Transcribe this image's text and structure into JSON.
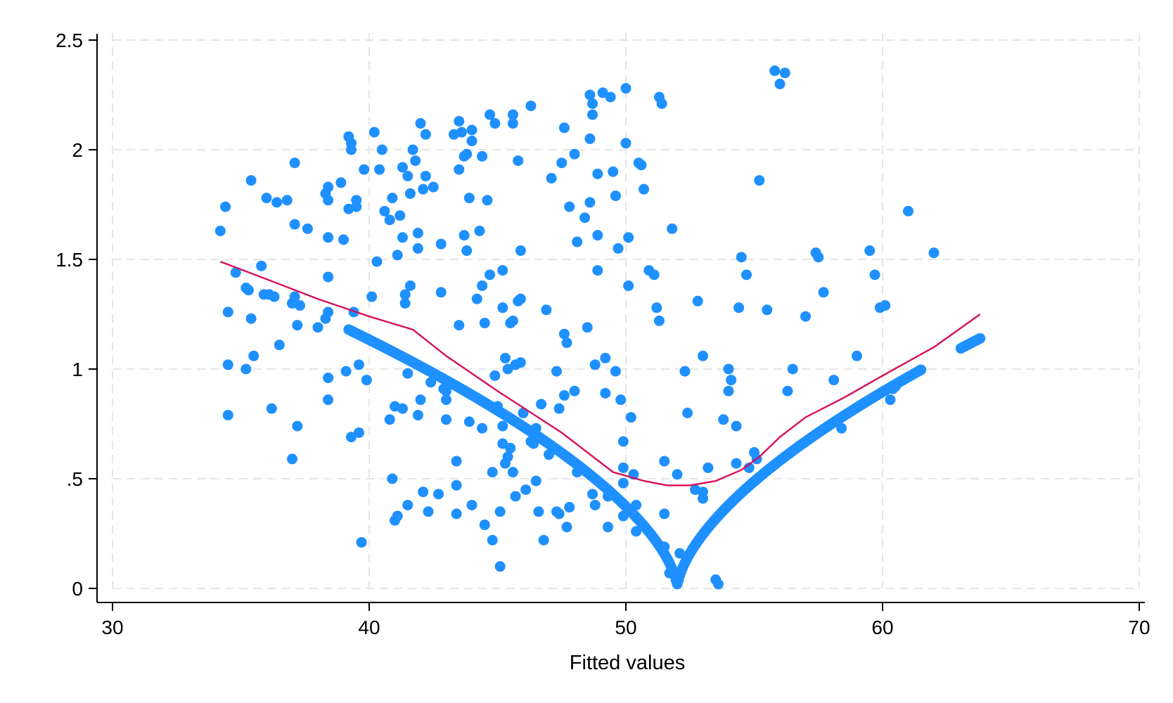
{
  "chart_data": {
    "type": "scatter",
    "title": "",
    "xlabel": "Fitted values",
    "ylabel": "",
    "xlim": [
      30,
      70
    ],
    "ylim": [
      0,
      2.5
    ],
    "x_ticks": [
      30,
      40,
      50,
      60,
      70
    ],
    "x_tick_labels": [
      "30",
      "40",
      "50",
      "60",
      "70"
    ],
    "y_ticks": [
      0,
      0.5,
      1,
      1.5,
      2,
      2.5
    ],
    "y_tick_labels": [
      "0",
      ".5",
      "1",
      "1.5",
      "2",
      "2.5"
    ],
    "grid": true,
    "legend": "none",
    "colors": {
      "points": "#1e90ff",
      "smooth_line": "#d5105a",
      "grid": "#e6e6e6",
      "axis": "#000000"
    },
    "series": [
      {
        "type": "scatter",
        "points": [
          [
            34.2,
            1.63
          ],
          [
            34.4,
            1.74
          ],
          [
            34.5,
            1.26
          ],
          [
            34.5,
            1.02
          ],
          [
            34.5,
            0.79
          ],
          [
            34.8,
            1.44
          ],
          [
            35.2,
            1.37
          ],
          [
            35.3,
            1.36
          ],
          [
            35.2,
            1.0
          ],
          [
            35.4,
            1.86
          ],
          [
            35.4,
            1.23
          ],
          [
            35.5,
            1.06
          ],
          [
            35.8,
            1.47
          ],
          [
            35.9,
            1.34
          ],
          [
            36.0,
            1.78
          ],
          [
            36.1,
            1.34
          ],
          [
            36.2,
            0.82
          ],
          [
            36.3,
            1.33
          ],
          [
            36.4,
            1.76
          ],
          [
            36.5,
            1.11
          ],
          [
            36.8,
            1.77
          ],
          [
            37.0,
            1.3
          ],
          [
            37.1,
            1.33
          ],
          [
            37.1,
            1.66
          ],
          [
            37.1,
            1.94
          ],
          [
            37.2,
            1.2
          ],
          [
            37.3,
            1.29
          ],
          [
            37.0,
            0.59
          ],
          [
            37.2,
            0.74
          ],
          [
            37.6,
            1.64
          ],
          [
            38.0,
            1.19
          ],
          [
            38.3,
            1.23
          ],
          [
            38.3,
            1.8
          ],
          [
            38.4,
            1.83
          ],
          [
            38.4,
            1.77
          ],
          [
            38.4,
            1.6
          ],
          [
            38.4,
            1.42
          ],
          [
            38.4,
            1.26
          ],
          [
            38.4,
            0.96
          ],
          [
            38.4,
            0.86
          ],
          [
            38.9,
            1.85
          ],
          [
            39.0,
            1.59
          ],
          [
            39.1,
            0.99
          ],
          [
            39.2,
            2.06
          ],
          [
            39.2,
            1.73
          ],
          [
            39.3,
            2.03
          ],
          [
            39.3,
            2.0
          ],
          [
            39.4,
            1.26
          ],
          [
            39.5,
            1.77
          ],
          [
            39.5,
            1.74
          ],
          [
            39.6,
            1.02
          ],
          [
            39.3,
            0.69
          ],
          [
            39.6,
            0.71
          ],
          [
            39.7,
            0.21
          ],
          [
            39.8,
            1.91
          ],
          [
            39.9,
            0.95
          ],
          [
            40.1,
            1.33
          ],
          [
            40.2,
            2.08
          ],
          [
            40.3,
            1.49
          ],
          [
            40.4,
            1.91
          ],
          [
            40.5,
            2.0
          ],
          [
            40.6,
            1.72
          ],
          [
            40.8,
            1.68
          ],
          [
            40.9,
            1.78
          ],
          [
            40.8,
            0.77
          ],
          [
            40.9,
            0.5
          ],
          [
            41.0,
            0.83
          ],
          [
            41.0,
            0.31
          ],
          [
            41.1,
            0.33
          ],
          [
            41.1,
            1.52
          ],
          [
            41.2,
            1.7
          ],
          [
            41.3,
            1.6
          ],
          [
            41.3,
            0.82
          ],
          [
            41.3,
            1.92
          ],
          [
            41.4,
            1.3
          ],
          [
            41.4,
            1.34
          ],
          [
            41.5,
            0.98
          ],
          [
            41.5,
            1.88
          ],
          [
            41.5,
            0.38
          ],
          [
            41.6,
            1.8
          ],
          [
            41.6,
            1.38
          ],
          [
            41.7,
            2.0
          ],
          [
            41.8,
            1.95
          ],
          [
            41.9,
            1.55
          ],
          [
            41.9,
            1.62
          ],
          [
            41.9,
            0.79
          ],
          [
            42.0,
            2.12
          ],
          [
            42.0,
            0.86
          ],
          [
            42.1,
            0.44
          ],
          [
            42.1,
            1.82
          ],
          [
            42.2,
            1.88
          ],
          [
            42.2,
            2.07
          ],
          [
            42.3,
            0.35
          ],
          [
            42.4,
            0.94
          ],
          [
            42.5,
            1.83
          ],
          [
            42.7,
            0.43
          ],
          [
            42.8,
            1.57
          ],
          [
            42.8,
            1.35
          ],
          [
            42.9,
            0.91
          ],
          [
            43.0,
            0.9
          ],
          [
            43.0,
            0.77
          ],
          [
            43.0,
            0.86
          ],
          [
            43.3,
            2.07
          ],
          [
            43.4,
            0.58
          ],
          [
            43.4,
            0.47
          ],
          [
            43.4,
            0.34
          ],
          [
            43.5,
            2.13
          ],
          [
            43.5,
            1.91
          ],
          [
            43.5,
            1.2
          ],
          [
            43.6,
            2.08
          ],
          [
            43.7,
            1.97
          ],
          [
            43.7,
            1.61
          ],
          [
            43.8,
            1.98
          ],
          [
            43.8,
            1.54
          ],
          [
            43.9,
            1.78
          ],
          [
            43.9,
            0.76
          ],
          [
            44.0,
            2.09
          ],
          [
            44.0,
            2.04
          ],
          [
            44.0,
            0.38
          ],
          [
            44.2,
            1.32
          ],
          [
            44.3,
            1.63
          ],
          [
            44.4,
            1.97
          ],
          [
            44.4,
            1.38
          ],
          [
            44.4,
            0.73
          ],
          [
            44.5,
            1.21
          ],
          [
            44.5,
            0.29
          ],
          [
            44.6,
            1.77
          ],
          [
            44.7,
            1.43
          ],
          [
            44.7,
            2.16
          ],
          [
            44.8,
            0.53
          ],
          [
            44.8,
            0.22
          ],
          [
            44.9,
            2.12
          ],
          [
            44.9,
            0.97
          ],
          [
            45.0,
            0.83
          ],
          [
            45.1,
            0.1
          ],
          [
            45.1,
            0.35
          ],
          [
            45.2,
            0.74
          ],
          [
            45.2,
            1.28
          ],
          [
            45.2,
            1.45
          ],
          [
            45.2,
            0.66
          ],
          [
            45.3,
            1.05
          ],
          [
            45.3,
            0.57
          ],
          [
            45.4,
            1.0
          ],
          [
            45.4,
            0.6
          ],
          [
            45.5,
            1.21
          ],
          [
            45.5,
            0.64
          ],
          [
            45.6,
            2.16
          ],
          [
            45.6,
            2.12
          ],
          [
            45.6,
            1.22
          ],
          [
            45.6,
            0.53
          ],
          [
            45.7,
            0.42
          ],
          [
            45.7,
            1.02
          ],
          [
            45.8,
            1.31
          ],
          [
            45.8,
            1.95
          ],
          [
            45.9,
            1.54
          ],
          [
            45.9,
            1.32
          ],
          [
            45.9,
            1.03
          ],
          [
            46.0,
            0.8
          ],
          [
            46.1,
            0.45
          ],
          [
            46.3,
            0.67
          ],
          [
            46.3,
            2.2
          ],
          [
            46.4,
            0.66
          ],
          [
            46.5,
            0.73
          ],
          [
            46.5,
            0.49
          ],
          [
            46.6,
            0.35
          ],
          [
            46.7,
            0.84
          ],
          [
            46.8,
            0.22
          ],
          [
            46.9,
            1.27
          ],
          [
            47.0,
            0.61
          ],
          [
            47.1,
            1.87
          ],
          [
            47.3,
            0.99
          ],
          [
            47.3,
            0.35
          ],
          [
            47.4,
            0.34
          ],
          [
            47.4,
            0.82
          ],
          [
            47.5,
            1.94
          ],
          [
            47.6,
            2.1
          ],
          [
            47.6,
            1.16
          ],
          [
            47.6,
            0.88
          ],
          [
            47.7,
            1.12
          ],
          [
            47.7,
            0.28
          ],
          [
            47.8,
            0.37
          ],
          [
            47.8,
            1.74
          ],
          [
            48.0,
            1.98
          ],
          [
            48.0,
            0.9
          ],
          [
            48.1,
            1.58
          ],
          [
            48.1,
            0.53
          ],
          [
            48.4,
            1.69
          ],
          [
            48.5,
            1.19
          ],
          [
            48.6,
            2.25
          ],
          [
            48.6,
            1.76
          ],
          [
            48.6,
            2.05
          ],
          [
            48.7,
            2.21
          ],
          [
            48.7,
            2.16
          ],
          [
            48.7,
            0.43
          ],
          [
            48.8,
            0.38
          ],
          [
            48.8,
            1.02
          ],
          [
            48.9,
            1.89
          ],
          [
            48.9,
            1.61
          ],
          [
            48.9,
            1.45
          ],
          [
            49.1,
            2.26
          ],
          [
            49.1,
            0.47
          ],
          [
            49.2,
            1.05
          ],
          [
            49.2,
            0.89
          ],
          [
            49.3,
            0.42
          ],
          [
            49.3,
            0.28
          ],
          [
            49.4,
            2.24
          ],
          [
            49.5,
            1.9
          ],
          [
            49.6,
            1.79
          ],
          [
            49.7,
            1.55
          ],
          [
            49.6,
            0.99
          ],
          [
            49.8,
            0.86
          ],
          [
            49.9,
            0.67
          ],
          [
            49.9,
            0.55
          ],
          [
            49.9,
            0.48
          ],
          [
            49.9,
            0.33
          ],
          [
            50.0,
            2.28
          ],
          [
            50.0,
            2.03
          ],
          [
            50.1,
            1.6
          ],
          [
            50.1,
            1.38
          ],
          [
            50.2,
            0.78
          ],
          [
            50.3,
            0.52
          ],
          [
            50.4,
            0.38
          ],
          [
            50.4,
            0.26
          ],
          [
            50.5,
            1.94
          ],
          [
            50.6,
            1.93
          ],
          [
            50.7,
            1.82
          ],
          [
            50.9,
            1.45
          ],
          [
            51.1,
            1.43
          ],
          [
            51.2,
            1.28
          ],
          [
            51.3,
            1.22
          ],
          [
            51.3,
            2.24
          ],
          [
            51.4,
            2.21
          ],
          [
            51.5,
            0.58
          ],
          [
            51.5,
            0.34
          ],
          [
            51.5,
            0.19
          ],
          [
            51.7,
            0.07
          ],
          [
            51.8,
            1.64
          ],
          [
            52.0,
            0.52
          ],
          [
            52.1,
            0.16
          ],
          [
            52.3,
            0.99
          ],
          [
            52.4,
            0.8
          ],
          [
            52.7,
            0.45
          ],
          [
            52.8,
            1.31
          ],
          [
            53.0,
            1.06
          ],
          [
            53.0,
            0.44
          ],
          [
            53.0,
            0.41
          ],
          [
            53.2,
            0.55
          ],
          [
            53.5,
            0.04
          ],
          [
            53.6,
            0.02
          ],
          [
            53.8,
            0.77
          ],
          [
            54.0,
            1.0
          ],
          [
            54.0,
            0.9
          ],
          [
            54.1,
            0.95
          ],
          [
            54.3,
            0.74
          ],
          [
            54.3,
            0.57
          ],
          [
            54.4,
            1.28
          ],
          [
            54.5,
            1.51
          ],
          [
            54.7,
            1.43
          ],
          [
            54.8,
            0.55
          ],
          [
            55.0,
            0.62
          ],
          [
            55.1,
            0.59
          ],
          [
            55.2,
            1.86
          ],
          [
            55.5,
            1.27
          ],
          [
            55.8,
            2.36
          ],
          [
            56.0,
            2.3
          ],
          [
            56.2,
            2.35
          ],
          [
            56.3,
            0.9
          ],
          [
            56.5,
            1.0
          ],
          [
            57.0,
            1.24
          ],
          [
            57.4,
            1.53
          ],
          [
            57.5,
            1.51
          ],
          [
            57.7,
            1.35
          ],
          [
            58.1,
            0.95
          ],
          [
            58.4,
            0.73
          ],
          [
            59.0,
            1.06
          ],
          [
            59.5,
            1.54
          ],
          [
            59.7,
            1.43
          ],
          [
            59.9,
            1.28
          ],
          [
            60.1,
            1.29
          ],
          [
            60.3,
            0.86
          ],
          [
            60.4,
            0.91
          ],
          [
            60.5,
            0.92
          ],
          [
            61.0,
            1.72
          ],
          [
            62.0,
            1.53
          ]
        ]
      }
    ],
    "lowess_line": {
      "x": [
        34.2,
        36.0,
        38.0,
        40.0,
        41.7,
        43.0,
        45.0,
        47.5,
        49.5,
        50.7,
        51.6,
        52.5,
        53.5,
        54.5,
        55.2,
        56.0,
        57.0,
        58.5,
        60.0,
        62.0,
        63.8
      ],
      "y": [
        1.49,
        1.41,
        1.32,
        1.24,
        1.18,
        1.06,
        0.9,
        0.71,
        0.53,
        0.49,
        0.47,
        0.47,
        0.49,
        0.54,
        0.6,
        0.69,
        0.78,
        0.87,
        0.97,
        1.1,
        1.25
      ]
    },
    "fitted_curve": {
      "center_x": 52.0,
      "left_x_start": 39.2,
      "right_x_end": 63.8,
      "right_gap_x": [
        61.5,
        63.0
      ],
      "left_end_y": 1.18,
      "right_end_y": 1.14
    }
  }
}
